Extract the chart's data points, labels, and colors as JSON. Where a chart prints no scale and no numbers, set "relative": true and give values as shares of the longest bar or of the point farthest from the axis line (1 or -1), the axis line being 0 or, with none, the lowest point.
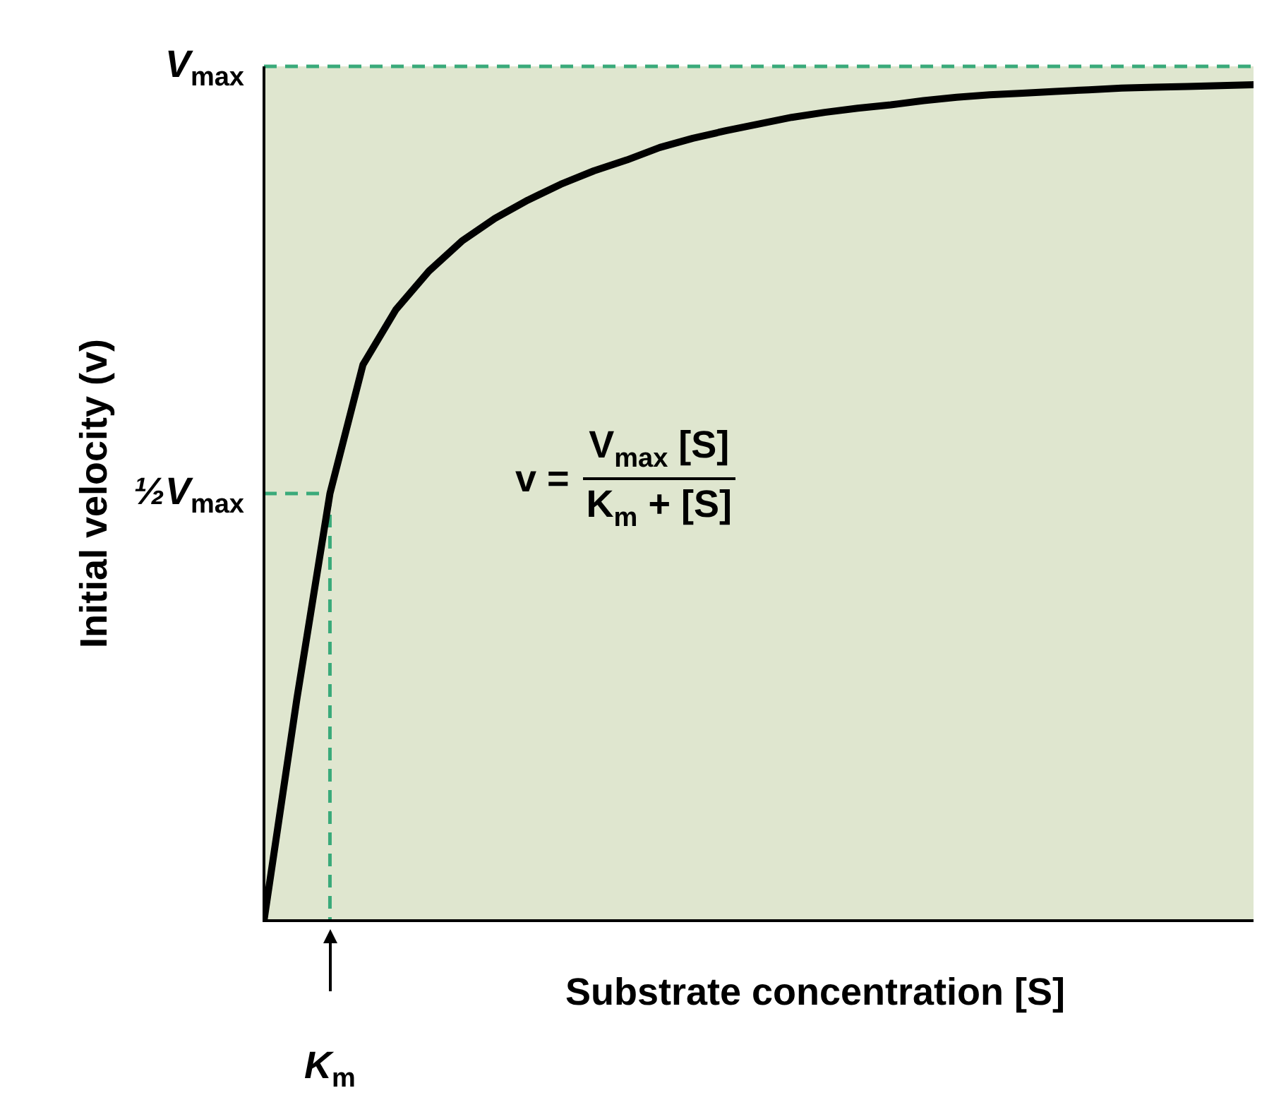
{
  "chart_data": {
    "type": "line",
    "relative": true,
    "ylabel": "Initial velocity (v)",
    "xlabel": "Substrate concentration [S]",
    "categories": [
      null,
      null,
      null,
      null,
      null,
      null,
      null,
      null,
      null,
      null,
      null,
      null,
      null,
      null,
      null,
      null,
      null,
      null,
      null,
      null,
      null,
      null,
      null,
      null,
      null,
      null,
      null,
      null,
      null,
      null,
      null
    ],
    "series": [
      {
        "color": "#000000",
        "values": [
          0,
          0.266,
          0.511,
          0.665,
          0.731,
          0.777,
          0.813,
          0.84,
          0.862,
          0.881,
          0.897,
          0.91,
          0.925,
          0.936,
          0.945,
          0.953,
          0.961,
          0.967,
          0.972,
          0.976,
          0.981,
          0.985,
          0.988,
          0.99,
          0.992,
          0.994,
          0.996,
          0.997,
          0.998,
          0.999,
          1
        ]
      }
    ],
    "ref_lines": [
      {
        "axis": "y",
        "value": 1.022,
        "label": "V$_{max}$",
        "color": "#3aaa7a",
        "line_style": "dashed"
      },
      {
        "axis": "y",
        "value": 0.511,
        "label": "½V$_{max}$",
        "color": "#3aaa7a",
        "line_style": "dashed"
      }
    ],
    "annotations": [
      "v =",
      "V$_{max}$ [S]",
      "K$_{m}$ + [S]",
      "K$_{m}$"
    ],
    "legend": false,
    "marker": "none",
    "line_style": "solid"
  }
}
